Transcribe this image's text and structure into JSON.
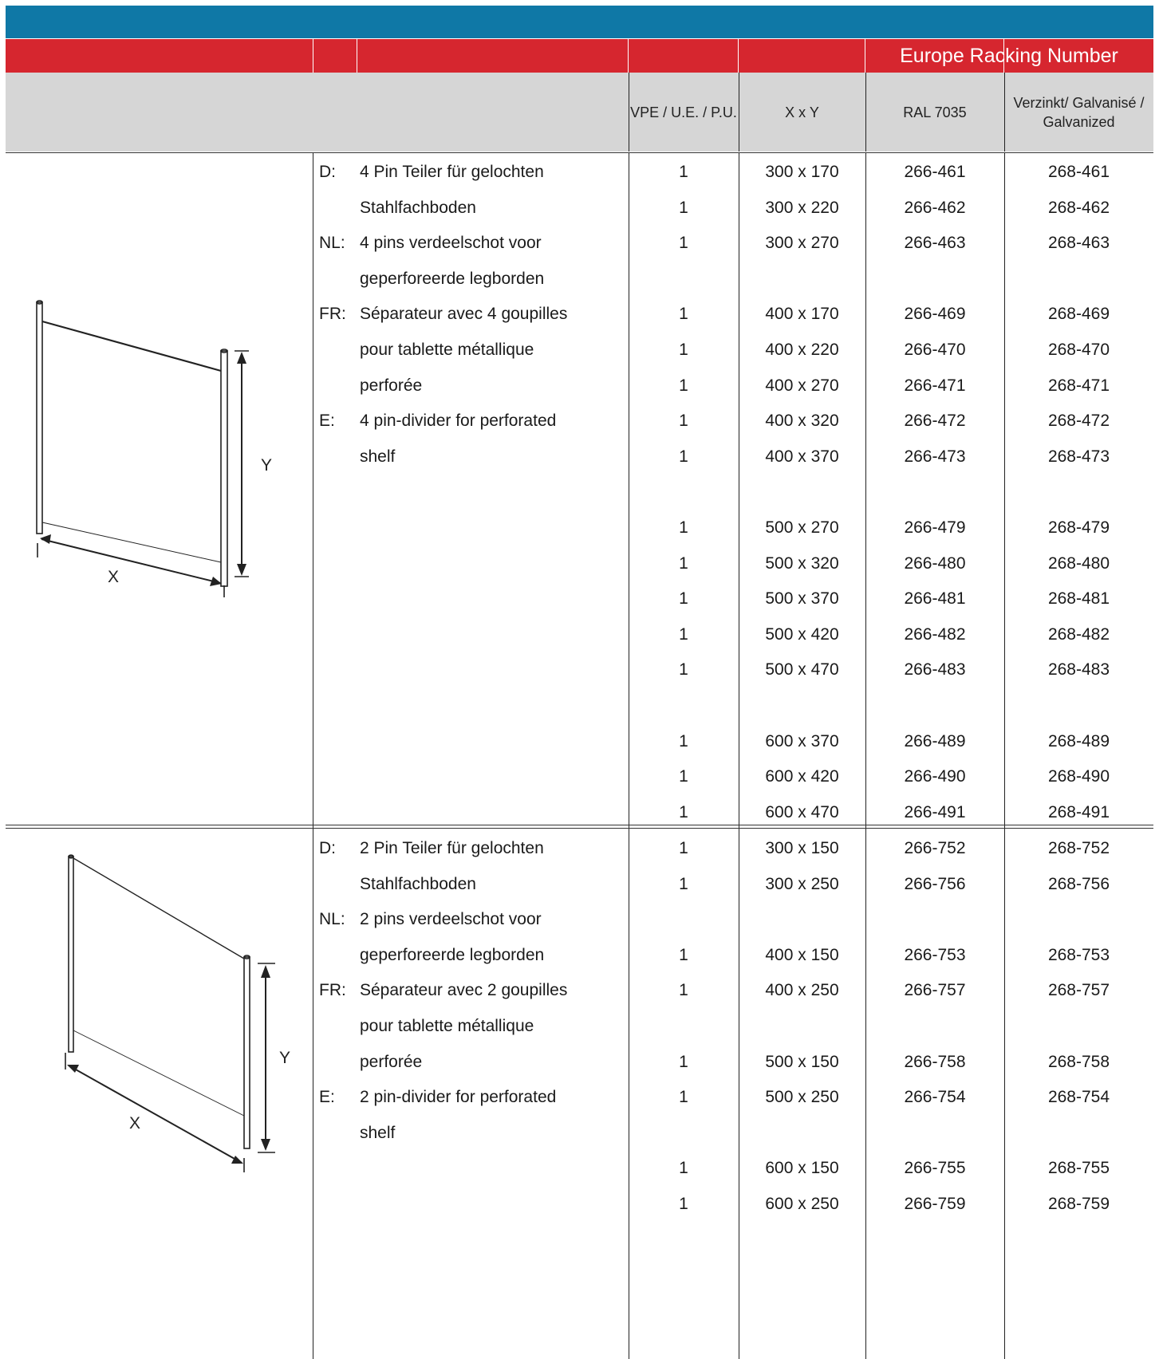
{
  "header": {
    "banner": "Europe Racking Number",
    "col_vpe": "VPE / U.E. / P.U.",
    "col_xy": "X x Y",
    "col_ral": "RAL 7035",
    "col_galv": "Verzinkt/ Galvanisé / Galvanized"
  },
  "product1": {
    "descriptions": [
      {
        "lang": "D:",
        "lines": [
          "4 Pin Teiler für gelochten",
          "Stahlfachboden"
        ]
      },
      {
        "lang": "NL:",
        "lines": [
          "4 pins verdeelschot voor",
          "geperforeerde legborden"
        ]
      },
      {
        "lang": "FR:",
        "lines": [
          "Séparateur avec 4 goupilles",
          "pour tablette métallique",
          "perforée"
        ]
      },
      {
        "lang": "E:",
        "lines": [
          "4 pin-divider for perforated",
          "shelf"
        ]
      }
    ],
    "figure": {
      "x_label": "X",
      "y_label": "Y"
    },
    "rows": [
      {
        "vpe": "1",
        "xy": "300 x 170",
        "ral": "266-461",
        "galv": "268-461"
      },
      {
        "vpe": "1",
        "xy": "300 x 220",
        "ral": "266-462",
        "galv": "268-462"
      },
      {
        "vpe": "1",
        "xy": "300 x 270",
        "ral": "266-463",
        "galv": "268-463"
      },
      null,
      {
        "vpe": "1",
        "xy": "400 x 170",
        "ral": "266-469",
        "galv": "268-469"
      },
      {
        "vpe": "1",
        "xy": "400 x 220",
        "ral": "266-470",
        "galv": "268-470"
      },
      {
        "vpe": "1",
        "xy": "400 x 270",
        "ral": "266-471",
        "galv": "268-471"
      },
      {
        "vpe": "1",
        "xy": "400 x 320",
        "ral": "266-472",
        "galv": "268-472"
      },
      {
        "vpe": "1",
        "xy": "400 x 370",
        "ral": "266-473",
        "galv": "268-473"
      },
      null,
      {
        "vpe": "1",
        "xy": "500 x 270",
        "ral": "266-479",
        "galv": "268-479"
      },
      {
        "vpe": "1",
        "xy": "500 x 320",
        "ral": "266-480",
        "galv": "268-480"
      },
      {
        "vpe": "1",
        "xy": "500 x 370",
        "ral": "266-481",
        "galv": "268-481"
      },
      {
        "vpe": "1",
        "xy": "500 x 420",
        "ral": "266-482",
        "galv": "268-482"
      },
      {
        "vpe": "1",
        "xy": "500 x 470",
        "ral": "266-483",
        "galv": "268-483"
      },
      null,
      {
        "vpe": "1",
        "xy": "600 x 370",
        "ral": "266-489",
        "galv": "268-489"
      },
      {
        "vpe": "1",
        "xy": "600 x 420",
        "ral": "266-490",
        "galv": "268-490"
      },
      {
        "vpe": "1",
        "xy": "600 x 470",
        "ral": "266-491",
        "galv": "268-491"
      }
    ]
  },
  "product2": {
    "descriptions": [
      {
        "lang": "D:",
        "lines": [
          "2 Pin Teiler für gelochten",
          "Stahlfachboden"
        ]
      },
      {
        "lang": "NL:",
        "lines": [
          "2 pins verdeelschot voor",
          "geperforeerde legborden"
        ]
      },
      {
        "lang": "FR:",
        "lines": [
          "Séparateur avec 2 goupilles",
          "pour tablette métallique",
          "perforée"
        ]
      },
      {
        "lang": "E:",
        "lines": [
          "2 pin-divider for perforated",
          "shelf"
        ]
      }
    ],
    "figure": {
      "x_label": "X",
      "y_label": "Y"
    },
    "rows": [
      {
        "vpe": "1",
        "xy": "300 x 150",
        "ral": "266-752",
        "galv": "268-752"
      },
      {
        "vpe": "1",
        "xy": "300 x 250",
        "ral": "266-756",
        "galv": "268-756"
      },
      null,
      {
        "vpe": "1",
        "xy": "400 x 150",
        "ral": "266-753",
        "galv": "268-753"
      },
      {
        "vpe": "1",
        "xy": "400 x 250",
        "ral": "266-757",
        "galv": "268-757"
      },
      null,
      {
        "vpe": "1",
        "xy": "500 x 150",
        "ral": "266-758",
        "galv": "268-758"
      },
      {
        "vpe": "1",
        "xy": "500 x 250",
        "ral": "266-754",
        "galv": "268-754"
      },
      null,
      {
        "vpe": "1",
        "xy": "600 x 150",
        "ral": "266-755",
        "galv": "268-755"
      },
      {
        "vpe": "1",
        "xy": "600 x 250",
        "ral": "266-759",
        "galv": "268-759"
      }
    ]
  }
}
